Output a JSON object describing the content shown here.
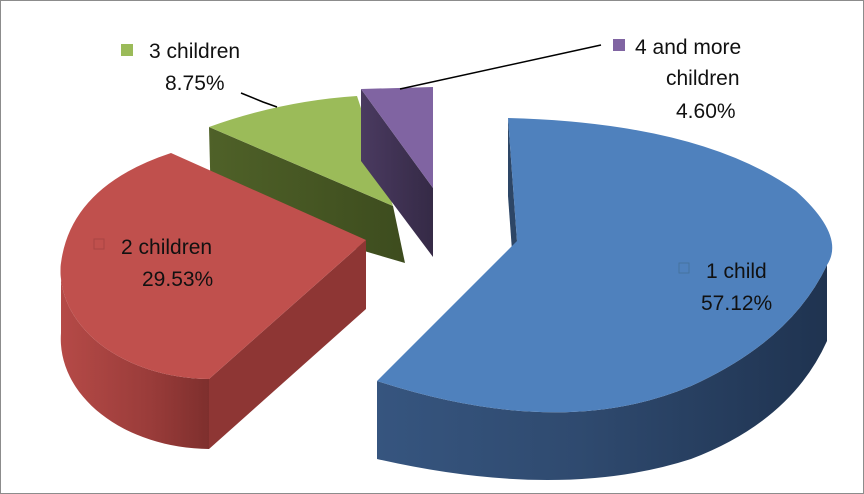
{
  "chart_data": {
    "type": "pie",
    "style": "3d-exploded",
    "title": "",
    "slices": [
      {
        "name": "1 child",
        "label": "57.12%",
        "value": 57.12,
        "color": "#4f81bd"
      },
      {
        "name": "2 children",
        "label": "29.53%",
        "value": 29.53,
        "color": "#c0504d"
      },
      {
        "name": "3 children",
        "label": "8.75%",
        "value": 8.75,
        "color": "#9bbb59"
      },
      {
        "name": "4 and more",
        "name2": "children",
        "label": "4.60%",
        "value": 4.6,
        "color": "#8064a2"
      }
    ],
    "legend": "none",
    "data_labels": "category name, percentage, legend key"
  }
}
